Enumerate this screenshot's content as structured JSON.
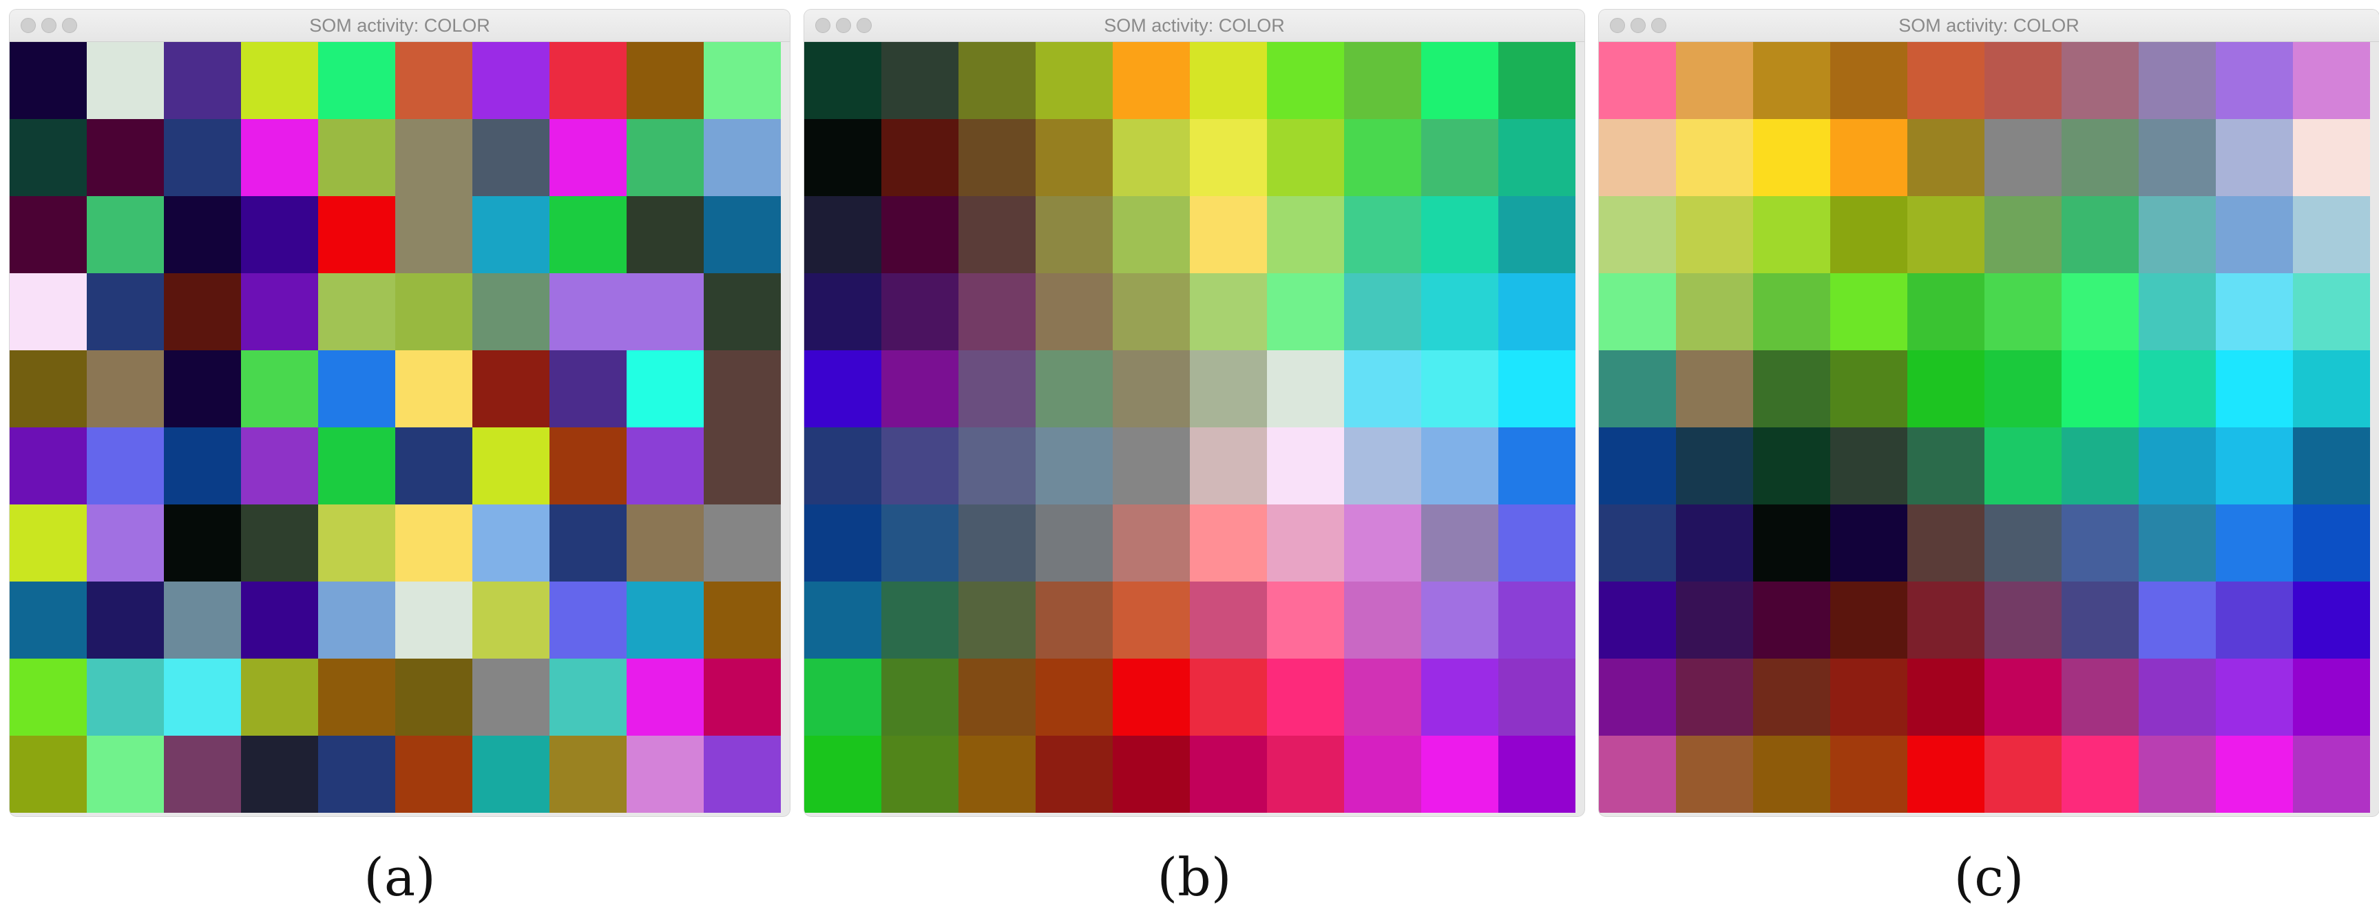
{
  "panels": [
    {
      "window_title": "SOM activity: COLOR",
      "caption": "(a)",
      "grid_colors": [
        [
          "#12023a",
          "#dbe7dc",
          "#4b2c8c",
          "#c7e520",
          "#1ef279",
          "#cc5b35",
          "#9b2be6",
          "#ec2a40",
          "#8e5b0a",
          "#71f28c"
        ],
        [
          "#0e3d33",
          "#4b0234",
          "#233978",
          "#e81ceb",
          "#9aba42",
          "#8d8665",
          "#4b5a6c",
          "#e81ceb",
          "#3cbb6b",
          "#78a4d7"
        ],
        [
          "#4b0234",
          "#3cbf6f",
          "#12023a",
          "#37028f",
          "#f00208",
          "#8d8665",
          "#18a4c5",
          "#1bcc40",
          "#2e3c2b",
          "#0f6794"
        ],
        [
          "#f9e1f9",
          "#233978",
          "#5b150d",
          "#6c10b5",
          "#a1c354",
          "#98b940",
          "#6a9370",
          "#a170e2",
          "#a170e2",
          "#2e3f2d"
        ],
        [
          "#735f10",
          "#8b7654",
          "#12023a",
          "#49d84e",
          "#207ae8",
          "#fbde64",
          "#8e1d11",
          "#4b2c8c",
          "#22ffe3",
          "#5b403a"
        ],
        [
          "#6c10b5",
          "#6466ec",
          "#0a3d88",
          "#8e33c7",
          "#1bcc40",
          "#233978",
          "#cae620",
          "#9e380c",
          "#8b3fd6",
          "#5b403a"
        ],
        [
          "#cae620",
          "#a170e2",
          "#050b08",
          "#2e3f2d",
          "#c0d04a",
          "#fbde64",
          "#80b1e8",
          "#233978",
          "#8b7654",
          "#858585"
        ],
        [
          "#0f6794",
          "#1f1763",
          "#6b8a9b",
          "#37028f",
          "#78a4d7",
          "#dbe7dc",
          "#c0d04a",
          "#6466ec",
          "#18a4c5",
          "#8e5b0a"
        ],
        [
          "#70e722",
          "#45c8bb",
          "#4decf2",
          "#9aad22",
          "#8e5b0a",
          "#735f10",
          "#858585",
          "#45c8bb",
          "#e81ceb",
          "#c2015a"
        ],
        [
          "#8ca610",
          "#71f28c",
          "#753b65",
          "#1e2033",
          "#233978",
          "#a23a0c",
          "#17aaa1",
          "#9a8221",
          "#d482d9",
          "#8b3fd6"
        ]
      ]
    },
    {
      "window_title": "SOM activity: COLOR",
      "caption": "(b)",
      "grid_colors": [
        [
          "#0b3c29",
          "#2d3f32",
          "#6f7a1f",
          "#9db521",
          "#fca216",
          "#d6e526",
          "#6de627",
          "#63c23a",
          "#1df271",
          "#1ab156"
        ],
        [
          "#050b08",
          "#5b150d",
          "#6b4a22",
          "#967f20",
          "#bfd143",
          "#eaea45",
          "#a0d92b",
          "#49d84e",
          "#3fbd70",
          "#16b98a"
        ],
        [
          "#1c1c35",
          "#4b0234",
          "#5a3c38",
          "#8d8842",
          "#9fc153",
          "#fbde64",
          "#9fdc6d",
          "#3ece8c",
          "#1ad8a6",
          "#15a2a1"
        ],
        [
          "#22125e",
          "#4b1360",
          "#733b65",
          "#8b7654",
          "#98a254",
          "#a8d270",
          "#71f28c",
          "#44c8bc",
          "#26d4d4",
          "#1abde9"
        ],
        [
          "#3b02cf",
          "#7a1092",
          "#6a4e7f",
          "#6a9370",
          "#8d8665",
          "#a8b497",
          "#dbe7dc",
          "#64e0f7",
          "#4deef2",
          "#1ce6ff"
        ],
        [
          "#233978",
          "#464687",
          "#5c6288",
          "#6f8a9b",
          "#858585",
          "#d1b8b8",
          "#f9e1f9",
          "#a9bde0",
          "#80b1e8",
          "#207ae8"
        ],
        [
          "#0a3d88",
          "#235486",
          "#4b5a6c",
          "#75797d",
          "#b87771",
          "#ff8f95",
          "#e8a4c5",
          "#d482d9",
          "#917fb1",
          "#6466ec"
        ],
        [
          "#0f6794",
          "#2b6b4b",
          "#55643d",
          "#9b5436",
          "#cc5b35",
          "#cc4e7c",
          "#ff6b99",
          "#c968c4",
          "#a170e2",
          "#8b3fd6"
        ],
        [
          "#1dc441",
          "#497f21",
          "#814b14",
          "#a03a0c",
          "#ef0209",
          "#ec2a40",
          "#fd2a7b",
          "#d132b5",
          "#9b2be6",
          "#8e33c7"
        ],
        [
          "#1ac51c",
          "#51851a",
          "#8e5b0a",
          "#8e1d11",
          "#a3011e",
          "#c2015a",
          "#e31b63",
          "#d620c1",
          "#ed1bec",
          "#9302cf"
        ]
      ]
    },
    {
      "window_title": "SOM activity: COLOR",
      "caption": "(c)",
      "grid_colors": [
        [
          "#ff6b99",
          "#e2a34e",
          "#b98a1b",
          "#a86a14",
          "#cc5b35",
          "#b9574c",
          "#a3687c",
          "#917fb1",
          "#a170e2",
          "#d482d9"
        ],
        [
          "#efc49b",
          "#f9dd5c",
          "#fcdc1e",
          "#fca216",
          "#9a8221",
          "#858585",
          "#6a9370",
          "#6f8a9b",
          "#a9b3d8",
          "#f9e1dc"
        ],
        [
          "#b6d67a",
          "#c0d04a",
          "#a0d92b",
          "#8aa610",
          "#9db521",
          "#6fa55a",
          "#3ab86e",
          "#64b5b7",
          "#78a4d7",
          "#a7ccdb"
        ],
        [
          "#71f28c",
          "#9fc153",
          "#63c23a",
          "#6de627",
          "#3ac332",
          "#49d84e",
          "#38f577",
          "#44c8bc",
          "#64e0f7",
          "#5ae0c9"
        ],
        [
          "#358d7c",
          "#8b7654",
          "#3a7028",
          "#51851a",
          "#1dc421",
          "#1bc93c",
          "#1df271",
          "#1ad8a6",
          "#1ce6ff",
          "#18c6d1"
        ],
        [
          "#0a3d88",
          "#16394f",
          "#0c3b23",
          "#2d3f32",
          "#2b6b4b",
          "#1bc966",
          "#1ab08a",
          "#17a0c8",
          "#1abde9",
          "#0f6794"
        ],
        [
          "#233978",
          "#22125e",
          "#050b08",
          "#12023a",
          "#5a3c38",
          "#4b5a6c",
          "#455f9c",
          "#2785a8",
          "#207ae8",
          "#0c50c5"
        ],
        [
          "#37028f",
          "#371155",
          "#4b0234",
          "#5b150d",
          "#7c1f2b",
          "#733b65",
          "#464687",
          "#6466ec",
          "#5a3cd7",
          "#3b02cf"
        ],
        [
          "#7a1092",
          "#6b1d4c",
          "#712a1a",
          "#8e1d11",
          "#a3011e",
          "#c2015a",
          "#a33181",
          "#8e33c7",
          "#9b2be6",
          "#9302cf"
        ],
        [
          "#bf4a9a",
          "#985a2d",
          "#8e5b0a",
          "#a23a0c",
          "#ef0209",
          "#ec2a40",
          "#fd2a7b",
          "#b93fb2",
          "#ed1bec",
          "#b032c5"
        ]
      ]
    }
  ]
}
